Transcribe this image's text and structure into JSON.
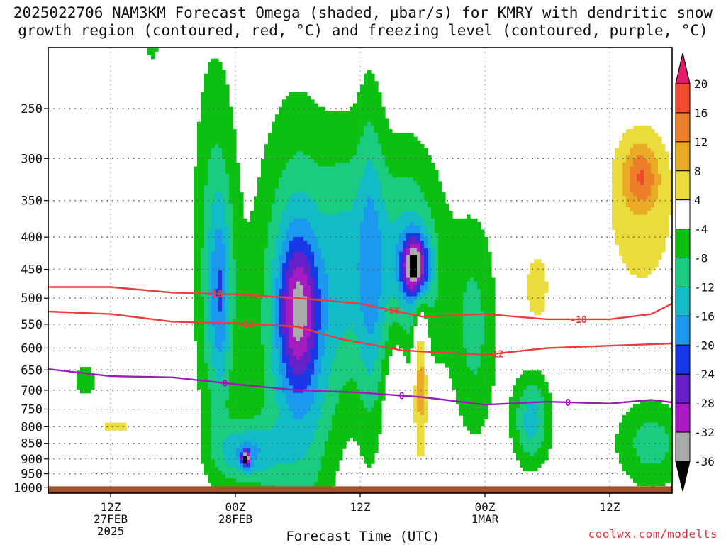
{
  "title": {
    "line1": "2025022706 NAM3KM Forecast Omega (shaded, μbar/s) for KMRY with dendritic snow",
    "line2": "growth region (contoured, red, °C) and freezing level (contoured, purple, °C)"
  },
  "credit": "coolwx.com/modelts",
  "colors": {
    "ground": "#a0522d",
    "dgz_contour": "#ef3b3b",
    "freezing_contour": "#9b1bb5",
    "grid": "#555555"
  },
  "chart_data": {
    "type": "heatmap",
    "xlabel": "Forecast Time (UTC)",
    "ylabel": "",
    "y_scale": "log",
    "yticks": [
      "250",
      "300",
      "350",
      "400",
      "450",
      "500",
      "550",
      "600",
      "650",
      "700",
      "750",
      "800",
      "850",
      "900",
      "950",
      "1000"
    ],
    "ylim_hpa": [
      200,
      1020
    ],
    "xlim_hours_from_init": [
      0,
      60
    ],
    "xticks": [
      {
        "hour": 6,
        "lines": [
          "12Z",
          "27FEB",
          "2025"
        ]
      },
      {
        "hour": 18,
        "lines": [
          "00Z",
          "28FEB"
        ]
      },
      {
        "hour": 30,
        "lines": [
          "12Z"
        ]
      },
      {
        "hour": 42,
        "lines": [
          "00Z",
          "1MAR"
        ]
      },
      {
        "hour": 54,
        "lines": [
          "12Z"
        ]
      }
    ],
    "colorbar": {
      "levels": [
        "20",
        "16",
        "12",
        "8",
        "4",
        "-4",
        "-8",
        "-12",
        "-16",
        "-20",
        "-24",
        "-28",
        "-32",
        "-36"
      ],
      "colors": [
        "#e8186d",
        "#f04a30",
        "#ed7e2a",
        "#e9aa26",
        "#ebdc3e",
        "#ffffff",
        "#0bc010",
        "#1bcc80",
        "#12bcc6",
        "#1a99ee",
        "#1837e6",
        "#6620c8",
        "#a81ac2",
        "#aaaaaa",
        "#000000"
      ]
    },
    "contours": [
      {
        "name": "-18",
        "color": "#ef3b3b",
        "label": "-18",
        "points": [
          [
            0,
            480
          ],
          [
            6,
            480
          ],
          [
            12,
            490
          ],
          [
            18,
            493
          ],
          [
            24,
            500
          ],
          [
            30,
            510
          ],
          [
            36,
            535
          ],
          [
            42,
            530
          ],
          [
            48,
            540
          ],
          [
            54,
            540
          ],
          [
            58,
            530
          ],
          [
            60,
            510
          ]
        ],
        "labels_at": [
          16,
          33,
          51
        ]
      },
      {
        "name": "-12",
        "color": "#ef3b3b",
        "label": "-12",
        "points": [
          [
            0,
            525
          ],
          [
            6,
            530
          ],
          [
            12,
            545
          ],
          [
            18,
            548
          ],
          [
            24,
            555
          ],
          [
            28,
            580
          ],
          [
            34,
            605
          ],
          [
            42,
            615
          ],
          [
            48,
            600
          ],
          [
            54,
            595
          ],
          [
            60,
            590
          ]
        ],
        "labels_at": [
          19,
          43
        ]
      },
      {
        "name": "0",
        "color": "#9b1bb5",
        "label": "0",
        "points": [
          [
            0,
            648
          ],
          [
            6,
            665
          ],
          [
            12,
            668
          ],
          [
            18,
            685
          ],
          [
            24,
            700
          ],
          [
            30,
            706
          ],
          [
            36,
            718
          ],
          [
            42,
            738
          ],
          [
            48,
            730
          ],
          [
            54,
            735
          ],
          [
            58,
            725
          ],
          [
            60,
            732
          ]
        ],
        "labels_at": [
          17,
          34,
          50
        ]
      }
    ],
    "omega_regions": [
      {
        "hour": 3.5,
        "p": 675,
        "dx": 0.8,
        "lp": 0.04,
        "v": -8
      },
      {
        "hour": 6.5,
        "p": 800,
        "dx": 1.2,
        "lp": 0.02,
        "v": 6
      },
      {
        "hour": 10,
        "p": 195,
        "dx": 0.5,
        "lp": 0.08,
        "v": -6
      },
      {
        "hour": 16,
        "p": 420,
        "dx": 1.6,
        "lp": 0.55,
        "v": -9
      },
      {
        "hour": 16.5,
        "p": 500,
        "dx": 0.8,
        "lp": 0.25,
        "v": -12
      },
      {
        "hour": 19,
        "p": 880,
        "dx": 2.0,
        "lp": 0.08,
        "v": -14
      },
      {
        "hour": 19,
        "p": 900,
        "dx": 0.3,
        "lp": 0.02,
        "v": -26
      },
      {
        "hour": 23,
        "p": 560,
        "dx": 2.6,
        "lp": 0.55,
        "v": -10
      },
      {
        "hour": 24,
        "p": 520,
        "dx": 1.3,
        "lp": 0.18,
        "v": -17
      },
      {
        "hour": 25,
        "p": 560,
        "dx": 2.0,
        "lp": 0.45,
        "v": -10
      },
      {
        "hour": 28.5,
        "p": 440,
        "dx": 1.5,
        "lp": 0.35,
        "v": -10
      },
      {
        "hour": 31,
        "p": 450,
        "dx": 1.0,
        "lp": 0.45,
        "v": -12
      },
      {
        "hour": 34.5,
        "p": 440,
        "dx": 2.5,
        "lp": 0.3,
        "v": -14
      },
      {
        "hour": 35.3,
        "p": 445,
        "dx": 0.9,
        "lp": 0.08,
        "v": -28
      },
      {
        "hour": 33.5,
        "p": 700,
        "dx": 0.8,
        "lp": 0.2,
        "v": 6
      },
      {
        "hour": 35.8,
        "p": 650,
        "dx": 0.5,
        "lp": 0.22,
        "v": 14
      },
      {
        "hour": 41,
        "p": 560,
        "dx": 1.6,
        "lp": 0.3,
        "v": -9
      },
      {
        "hour": 46.5,
        "p": 780,
        "dx": 1.3,
        "lp": 0.12,
        "v": -14
      },
      {
        "hour": 47,
        "p": 480,
        "dx": 1.0,
        "lp": 0.12,
        "v": 6
      },
      {
        "hour": 57,
        "p": 360,
        "dx": 3.0,
        "lp": 0.28,
        "v": 6
      },
      {
        "hour": 57,
        "p": 320,
        "dx": 1.2,
        "lp": 0.08,
        "v": 11
      },
      {
        "hour": 58,
        "p": 850,
        "dx": 2.5,
        "lp": 0.12,
        "v": -10
      }
    ]
  }
}
